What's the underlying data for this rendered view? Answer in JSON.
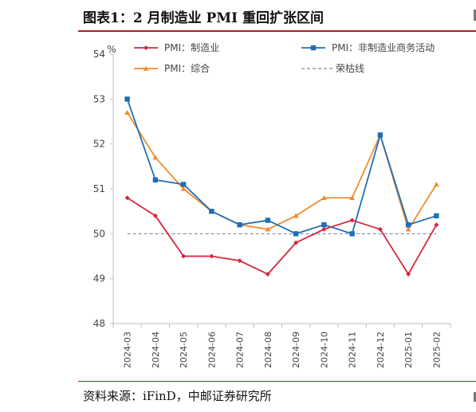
{
  "title": "图表1：2 月制造业 PMI 重回扩张区间",
  "source": "资料来源：iFinD，中邮证券研究所",
  "chart_data": {
    "type": "line",
    "ylabel": "%",
    "ylim": [
      48,
      54
    ],
    "yticks": [
      48,
      49,
      50,
      51,
      52,
      53,
      54
    ],
    "x": [
      "2024-03",
      "2024-04",
      "2024-05",
      "2024-06",
      "2024-07",
      "2024-08",
      "2024-09",
      "2024-10",
      "2024-11",
      "2024-12",
      "2025-01",
      "2025-02"
    ],
    "series": [
      {
        "name": "PMI：制造业",
        "color": "#d7263d",
        "marker": "diamond",
        "values": [
          50.8,
          50.4,
          49.5,
          49.5,
          49.4,
          49.1,
          49.8,
          50.1,
          50.3,
          50.1,
          49.1,
          50.2
        ]
      },
      {
        "name": "PMI：非制造业商务活动",
        "color": "#1f6fb5",
        "marker": "square",
        "values": [
          53.0,
          51.2,
          51.1,
          50.5,
          50.2,
          50.3,
          50.0,
          50.2,
          50.0,
          52.2,
          50.2,
          50.4
        ]
      },
      {
        "name": "PMI：综合",
        "color": "#f08c2e",
        "marker": "triangle",
        "values": [
          52.7,
          51.7,
          51.0,
          50.5,
          50.2,
          50.1,
          50.4,
          50.8,
          50.8,
          52.2,
          50.1,
          51.1
        ]
      }
    ],
    "reference": {
      "name": "荣枯线",
      "value": 50,
      "color": "#7f8aa3",
      "style": "dashed"
    },
    "legend_position": "top"
  }
}
